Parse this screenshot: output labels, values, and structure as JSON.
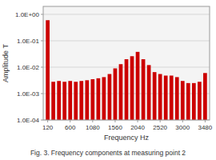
{
  "chart_data": {
    "type": "bar",
    "title": "Fig. 3. Frequency components at measuring point 2",
    "xlabel": "Frequency Hz",
    "ylabel": "Amplitude T",
    "x": [
      120,
      240,
      360,
      480,
      600,
      720,
      840,
      960,
      1080,
      1200,
      1320,
      1440,
      1560,
      1680,
      1800,
      1920,
      2040,
      2160,
      2280,
      2400,
      2520,
      2640,
      2760,
      2880,
      3000,
      3120,
      3240,
      3360,
      3480
    ],
    "values": [
      0.6,
      0.0028,
      0.003,
      0.0028,
      0.003,
      0.0028,
      0.003,
      0.0032,
      0.0035,
      0.0038,
      0.0042,
      0.0055,
      0.009,
      0.013,
      0.02,
      0.026,
      0.038,
      0.02,
      0.012,
      0.0065,
      0.0055,
      0.0048,
      0.0048,
      0.0042,
      0.003,
      0.0025,
      0.0025,
      0.0028,
      0.006
    ],
    "color": "#cc0000",
    "xlim": [
      24,
      3576
    ],
    "xticks": [
      120,
      600,
      1080,
      1560,
      2040,
      2520,
      3000,
      3480
    ],
    "ylim": [
      0.0001,
      2
    ],
    "yticks": [
      {
        "value": 0.0001,
        "label": "1.0E-04"
      },
      {
        "value": 0.001,
        "label": "1.0E-03"
      },
      {
        "value": 0.01,
        "label": "1.0E-02"
      },
      {
        "value": 0.1,
        "label": "1.0E-01"
      },
      {
        "value": 1,
        "label": "1.0E+00"
      }
    ],
    "log": "y",
    "grid": true
  }
}
